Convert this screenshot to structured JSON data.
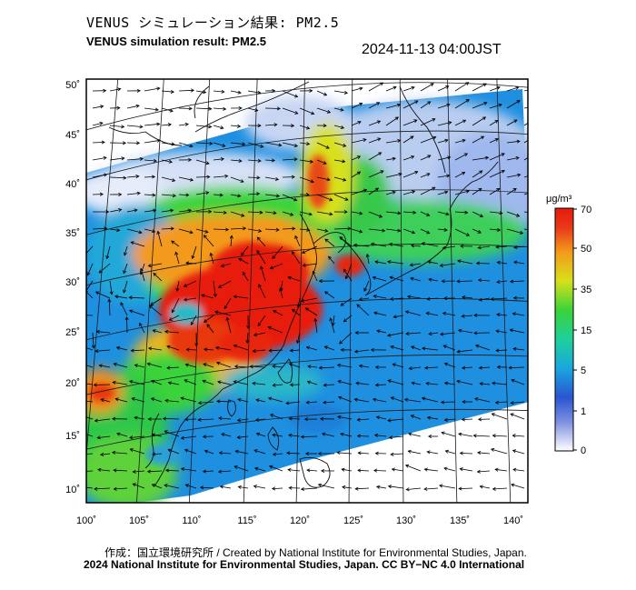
{
  "header": {
    "title_jp": "VENUS シミュレーション結果: PM2.5",
    "title_en": "VENUS simulation result: PM2.5",
    "timestamp": "2024-11-13 04:00JST"
  },
  "map": {
    "lon_labels": [
      "100˚",
      "105˚",
      "110˚",
      "115˚",
      "120˚",
      "125˚",
      "130˚",
      "135˚",
      "140˚"
    ],
    "lat_labels": [
      "50˚",
      "45˚",
      "40˚",
      "35˚",
      "30˚",
      "25˚",
      "20˚",
      "15˚",
      "10˚"
    ],
    "lon_range": [
      100,
      142
    ],
    "lat_range": [
      9,
      51
    ],
    "ocean_color": "#1f8fe0",
    "high_color": "#e81a0c"
  },
  "colorbar": {
    "unit": "μg/m³",
    "ticks": [
      "70",
      "50",
      "35",
      "15",
      "5",
      "1",
      "0"
    ],
    "colors": [
      "#ffffff",
      "#2b55d0",
      "#1aa6e0",
      "#1fd09a",
      "#3ad33a",
      "#d8e01a",
      "#f39a1a",
      "#e81a0c"
    ]
  },
  "footer": {
    "credit_line1": "作成：国立環境研究所 / Created by National Institute for Environmental Studies, Japan.",
    "credit_line2": "2024 National Institute for Environmental Studies, Japan. CC BY−NC 4.0 International"
  }
}
